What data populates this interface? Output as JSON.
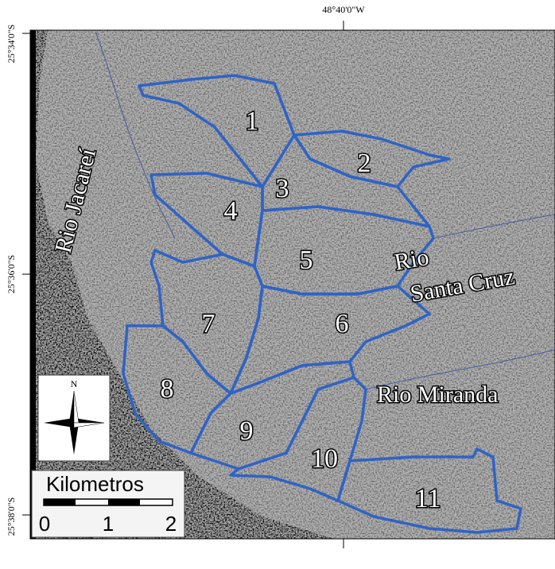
{
  "coordinates": {
    "top": "48°40'0\"W",
    "left": [
      "25°34'0\"S",
      "25°36'0\"S",
      "25°38'0\"S"
    ]
  },
  "rivers": [
    "Rio Jacareí",
    "Rio",
    "Santa Cruz",
    "Rio Miranda"
  ],
  "basins": [
    "1",
    "2",
    "3",
    "4",
    "5",
    "6",
    "7",
    "8",
    "9",
    "10",
    "11"
  ],
  "north_arrow": "N",
  "scale_bar": {
    "title": "Kilometros",
    "labels": [
      "0",
      "1",
      "2"
    ]
  }
}
